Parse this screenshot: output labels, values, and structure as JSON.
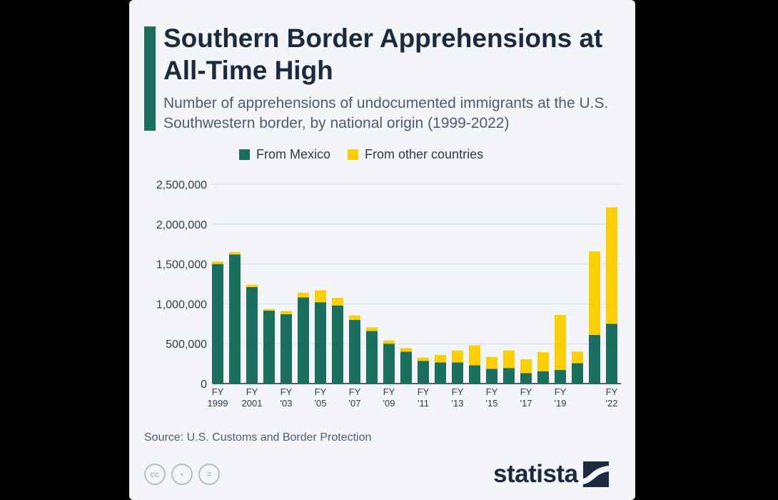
{
  "header": {
    "title": "Southern Border Apprehensions at All-Time High",
    "subtitle": "Number of apprehensions of undocumented immigrants at the U.S. Southwestern border, by national origin (1999-2022)"
  },
  "legend": [
    {
      "label": "From Mexico",
      "color": "#1a6e5e"
    },
    {
      "label": "From other countries",
      "color": "#fcce04"
    }
  ],
  "chart_data": {
    "type": "bar",
    "stacked": true,
    "title": "Southern Border Apprehensions at All-Time High",
    "xlabel": "",
    "ylabel": "",
    "ylim": [
      0,
      2500000
    ],
    "yticks": [
      0,
      500000,
      1000000,
      1500000,
      2000000,
      2500000
    ],
    "ytick_labels": [
      "0",
      "500,000",
      "1,000,000",
      "1,500,000",
      "2,000,000",
      "2,500,000"
    ],
    "grid": true,
    "legend_position": "top",
    "categories": [
      "FY 1999",
      "FY 2000",
      "FY 2001",
      "FY 2002",
      "FY 2003",
      "FY 2004",
      "FY 2005",
      "FY 2006",
      "FY 2007",
      "FY 2008",
      "FY 2009",
      "FY 2010",
      "FY 2011",
      "FY 2012",
      "FY 2013",
      "FY 2014",
      "FY 2015",
      "FY 2016",
      "FY 2017",
      "FY 2018",
      "FY 2019",
      "FY 2020",
      "FY 2021",
      "FY 2022"
    ],
    "tick_labels": [
      {
        "index": 0,
        "line1": "FY",
        "line2": "1999"
      },
      {
        "index": 2,
        "line1": "FY",
        "line2": "2001"
      },
      {
        "index": 4,
        "line1": "FY",
        "line2": "'03"
      },
      {
        "index": 6,
        "line1": "FY",
        "line2": "'05"
      },
      {
        "index": 8,
        "line1": "FY",
        "line2": "'07"
      },
      {
        "index": 10,
        "line1": "FY",
        "line2": "'09"
      },
      {
        "index": 12,
        "line1": "FY",
        "line2": "'11"
      },
      {
        "index": 14,
        "line1": "FY",
        "line2": "'13"
      },
      {
        "index": 16,
        "line1": "FY",
        "line2": "'15"
      },
      {
        "index": 18,
        "line1": "FY",
        "line2": "'17"
      },
      {
        "index": 20,
        "line1": "FY",
        "line2": "'19"
      },
      {
        "index": 23,
        "line1": "FY",
        "line2": "'22"
      }
    ],
    "series": [
      {
        "name": "From Mexico",
        "color": "#1a6e5e",
        "values": [
          1500000,
          1620000,
          1210000,
          915000,
          870000,
          1080000,
          1020000,
          980000,
          800000,
          660000,
          500000,
          400000,
          285000,
          265000,
          265000,
          230000,
          185000,
          195000,
          130000,
          155000,
          170000,
          255000,
          610000,
          750000
        ]
      },
      {
        "name": "From other countries",
        "color": "#fcce04",
        "values": [
          30000,
          30000,
          30000,
          20000,
          40000,
          60000,
          150000,
          95000,
          55000,
          45000,
          40000,
          45000,
          40000,
          95000,
          150000,
          250000,
          150000,
          220000,
          175000,
          240000,
          690000,
          145000,
          1050000,
          1460000
        ]
      }
    ]
  },
  "footer": {
    "source": "Source: U.S. Customs and Border Protection",
    "cc_icons": [
      {
        "name": "cc-license-icon",
        "glyph": "cc"
      },
      {
        "name": "attribution-icon",
        "glyph": "•"
      },
      {
        "name": "no-derivatives-icon",
        "glyph": "="
      }
    ],
    "logo": "statista"
  }
}
